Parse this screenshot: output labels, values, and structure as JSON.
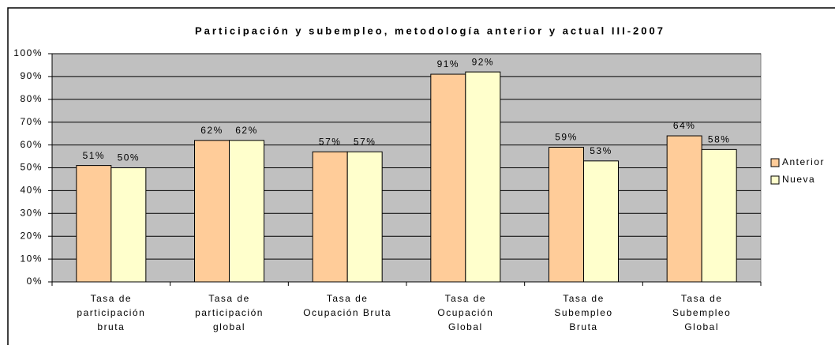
{
  "chart_data": {
    "type": "bar",
    "title": "Participación y subempleo, metodología anterior y actual III-2007",
    "categories": [
      [
        "Tasa de",
        "participación",
        "bruta"
      ],
      [
        "Tasa de",
        "participación",
        "global"
      ],
      [
        "Tasa de",
        "Ocupación Bruta"
      ],
      [
        "Tasa de",
        "Ocupación",
        "Global"
      ],
      [
        "Tasa de",
        "Subempleo",
        "Bruta"
      ],
      [
        "Tasa de",
        "Subempleo",
        "Global"
      ]
    ],
    "series": [
      {
        "name": "Anterior",
        "color": "#ffcc99",
        "values": [
          51,
          62,
          57,
          91,
          59,
          64
        ],
        "value_labels": [
          "51%",
          "62%",
          "57%",
          "91%",
          "59%",
          "64%"
        ]
      },
      {
        "name": "Nueva",
        "color": "#ffffcc",
        "values": [
          50,
          62,
          57,
          92,
          53,
          58
        ],
        "value_labels": [
          "50%",
          "62%",
          "57%",
          "92%",
          "53%",
          "58%"
        ]
      }
    ],
    "ylim": [
      0,
      100
    ],
    "yticks": [
      {
        "value": 0,
        "label": "0%"
      },
      {
        "value": 10,
        "label": "10%"
      },
      {
        "value": 20,
        "label": "20%"
      },
      {
        "value": 30,
        "label": "30%"
      },
      {
        "value": 40,
        "label": "40%"
      },
      {
        "value": 50,
        "label": "50%"
      },
      {
        "value": 60,
        "label": "60%"
      },
      {
        "value": 70,
        "label": "70%"
      },
      {
        "value": 80,
        "label": "80%"
      },
      {
        "value": 90,
        "label": "90%"
      },
      {
        "value": 100,
        "label": "100%"
      }
    ],
    "grid": true,
    "plot_background": "#c0c0c0",
    "legend": "right"
  }
}
